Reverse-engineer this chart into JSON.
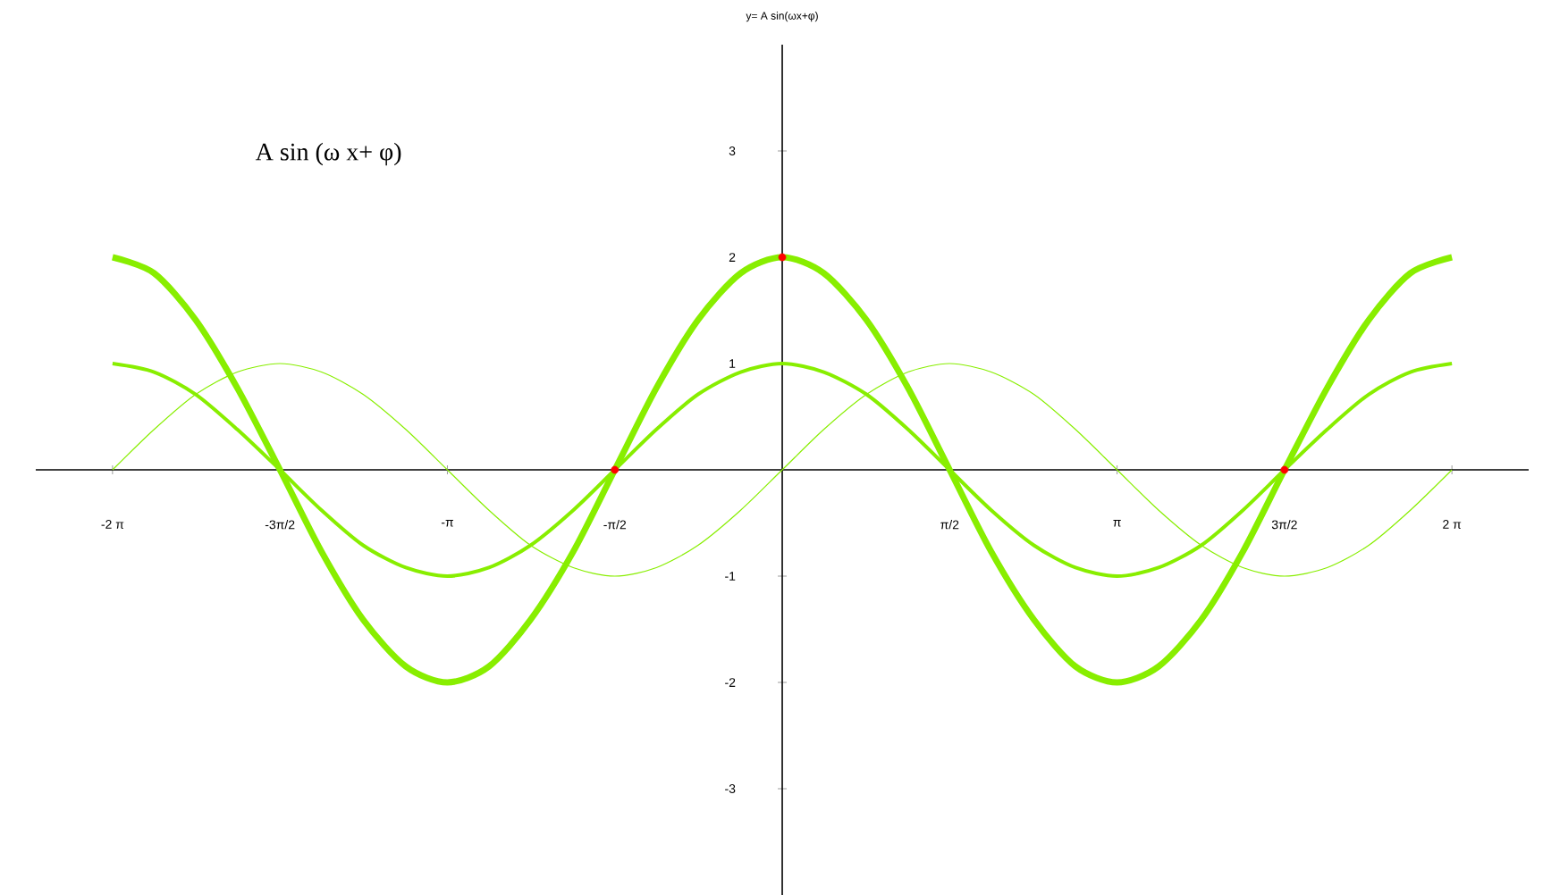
{
  "chart_data": {
    "type": "line",
    "title": "y= A sin(ωx+φ)",
    "annotations": [
      "A sin (ω x+ φ)"
    ],
    "x": [
      -6.28,
      -5.89,
      -5.5,
      -5.11,
      -4.71,
      -4.32,
      -3.93,
      -3.53,
      -3.14,
      -2.75,
      -2.36,
      -1.96,
      -1.57,
      -1.18,
      -0.79,
      -0.39,
      0,
      0.39,
      0.79,
      1.18,
      1.57,
      1.96,
      2.36,
      2.75,
      3.14,
      3.53,
      3.93,
      4.32,
      4.71,
      5.11,
      5.5,
      5.89,
      6.28
    ],
    "series": [
      {
        "color": "#88ee00",
        "values": [
          0,
          0.38,
          0.71,
          0.92,
          1,
          0.92,
          0.71,
          0.38,
          0,
          -0.38,
          -0.71,
          -0.92,
          -1,
          -0.92,
          -0.71,
          -0.38,
          0,
          0.38,
          0.71,
          0.92,
          1,
          0.92,
          0.71,
          0.38,
          0,
          -0.38,
          -0.71,
          -0.92,
          -1,
          -0.92,
          -0.71,
          -0.38,
          0
        ]
      },
      {
        "color": "#88ee00",
        "values": [
          1,
          0.92,
          0.71,
          0.38,
          0,
          -0.38,
          -0.71,
          -0.92,
          -1,
          -0.92,
          -0.71,
          -0.38,
          0,
          0.38,
          0.71,
          0.92,
          1,
          0.92,
          0.71,
          0.38,
          0,
          -0.38,
          -0.71,
          -0.92,
          -1,
          -0.92,
          -0.71,
          -0.38,
          0,
          0.38,
          0.71,
          0.92,
          1
        ]
      },
      {
        "color": "#88ee00",
        "values": [
          2,
          1.85,
          1.41,
          0.77,
          0,
          -0.77,
          -1.41,
          -1.85,
          -2,
          -1.85,
          -1.41,
          -0.77,
          0,
          0.77,
          1.41,
          1.85,
          2,
          1.85,
          1.41,
          0.77,
          0,
          -0.77,
          -1.41,
          -1.85,
          -2,
          -1.85,
          -1.41,
          -0.77,
          0,
          0.77,
          1.41,
          1.85,
          2
        ]
      },
      {
        "type": "scatter",
        "color": "#ff0000",
        "x": [
          -1.57,
          0,
          4.71
        ],
        "values": [
          0,
          2,
          0
        ]
      }
    ],
    "xlim": [
      -7,
      7
    ],
    "ylim": [
      -4,
      4
    ],
    "xticks": [
      {
        "value": -6.28,
        "label": "-2 π"
      },
      {
        "value": -4.71,
        "label": "-3π/2"
      },
      {
        "value": -3.14,
        "label": "-π"
      },
      {
        "value": -1.57,
        "label": "-π/2"
      },
      {
        "value": 1.57,
        "label": "π/2"
      },
      {
        "value": 3.14,
        "label": "π"
      },
      {
        "value": 4.71,
        "label": "3π/2"
      },
      {
        "value": 6.28,
        "label": "2 π"
      }
    ],
    "yticks": [
      -3,
      -2,
      -1,
      1,
      2,
      3
    ],
    "grid": false,
    "line_style": "solid"
  }
}
